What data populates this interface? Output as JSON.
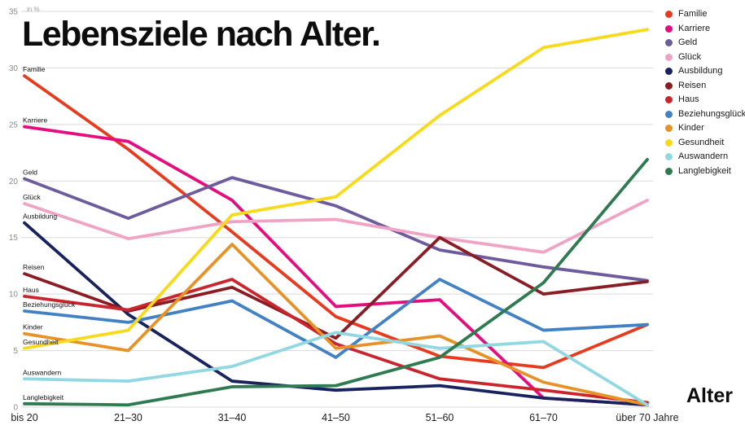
{
  "title": "Lebensziele nach Alter.",
  "y_unit_label": "in %",
  "x_axis_label": "Alter",
  "chart_data": {
    "type": "line",
    "categories": [
      "bis 20",
      "21–30",
      "31–40",
      "41–50",
      "51–60",
      "61–70",
      "über 70 Jahre"
    ],
    "ylim": [
      0,
      35
    ],
    "ytick_step": 5,
    "grid": true,
    "legend_position": "top-right",
    "series": [
      {
        "name": "Familie",
        "color": "#e63b1f",
        "values": [
          29.3,
          22.8,
          15.5,
          8.0,
          4.5,
          3.5,
          7.3
        ]
      },
      {
        "name": "Karriere",
        "color": "#e40c7e",
        "values": [
          24.8,
          23.5,
          18.3,
          8.9,
          9.5,
          0.8,
          0.2
        ]
      },
      {
        "name": "Geld",
        "color": "#6e5b9d",
        "values": [
          20.2,
          16.7,
          20.3,
          17.8,
          13.9,
          12.4,
          11.2
        ]
      },
      {
        "name": "Glück",
        "color": "#f0a4c5",
        "values": [
          18.0,
          14.9,
          16.4,
          16.6,
          15.0,
          13.7,
          18.3
        ]
      },
      {
        "name": "Ausbildung",
        "color": "#18235e",
        "values": [
          16.3,
          8.2,
          2.3,
          1.5,
          1.9,
          0.8,
          0.2
        ]
      },
      {
        "name": "Reisen",
        "color": "#8a1c24",
        "values": [
          11.8,
          8.5,
          10.6,
          6.1,
          15.0,
          10.0,
          11.1
        ]
      },
      {
        "name": "Haus",
        "color": "#c9252c",
        "values": [
          9.8,
          8.6,
          11.3,
          5.6,
          2.5,
          1.5,
          0.4
        ]
      },
      {
        "name": "Beziehungsglück",
        "color": "#4181c4",
        "values": [
          8.5,
          7.5,
          9.4,
          4.4,
          11.3,
          6.8,
          7.3
        ]
      },
      {
        "name": "Kinder",
        "color": "#e79226",
        "values": [
          6.5,
          5.0,
          14.4,
          5.2,
          6.3,
          2.2,
          0.2
        ]
      },
      {
        "name": "Gesundheit",
        "color": "#f7da1c",
        "values": [
          5.2,
          6.8,
          17.0,
          18.6,
          25.8,
          31.8,
          33.4
        ]
      },
      {
        "name": "Auswandern",
        "color": "#92d8e2",
        "values": [
          2.5,
          2.3,
          3.6,
          6.6,
          5.2,
          5.8,
          0.2
        ]
      },
      {
        "name": "Langlebigkeit",
        "color": "#2f7a50",
        "values": [
          0.3,
          0.2,
          1.8,
          1.9,
          4.4,
          11.0,
          21.9
        ]
      }
    ]
  }
}
